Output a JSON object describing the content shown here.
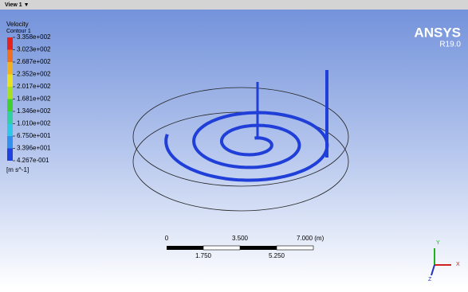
{
  "toolbar": {
    "view": "View 1 ▼"
  },
  "legend": {
    "title": "Velocity",
    "subtitle": "Contour 1",
    "labels": [
      "3.358e+002",
      "3.023e+002",
      "2.687e+002",
      "2.352e+002",
      "2.017e+002",
      "1.681e+002",
      "1.346e+002",
      "1.010e+002",
      "6.750e+001",
      "3.396e+001",
      "4.267e-001"
    ],
    "unit": "[m s^-1]"
  },
  "brand": {
    "name": "ANSYS",
    "version": "R19.0"
  },
  "scale_bar": {
    "top_labels": [
      "0",
      "3.500",
      "7.000 (m)"
    ],
    "bottom_labels": [
      "1.750",
      "5.250"
    ]
  },
  "triad": {
    "y": "Y",
    "x": "X",
    "z": "Z"
  }
}
